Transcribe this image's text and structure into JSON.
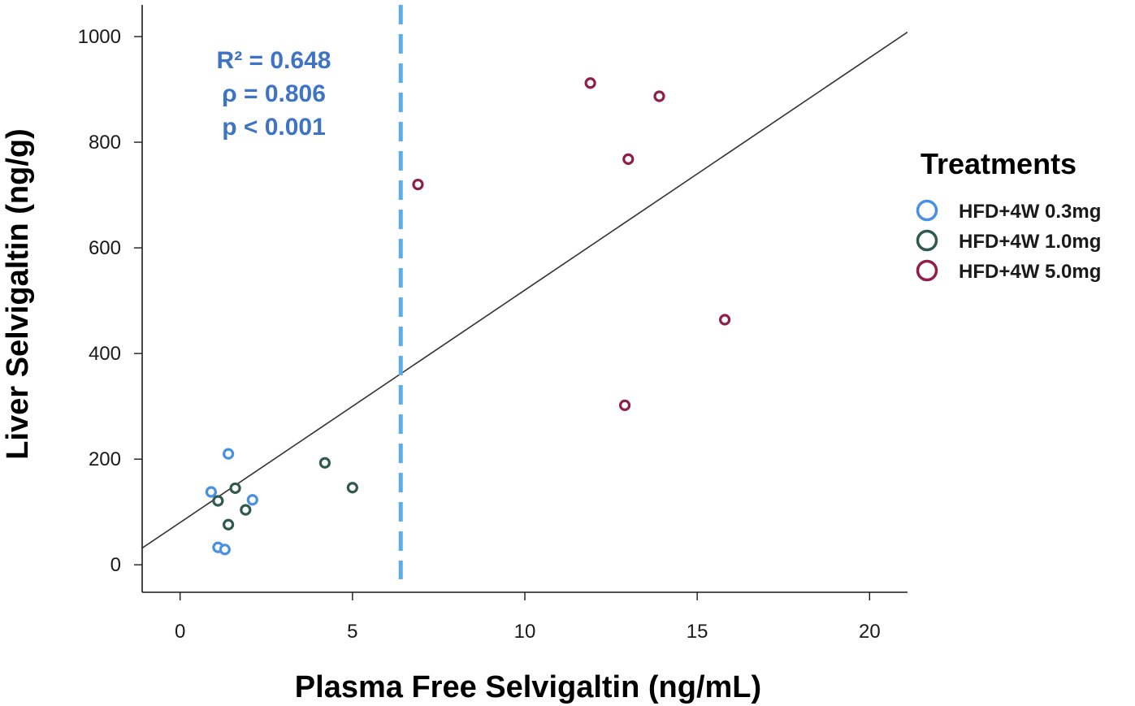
{
  "chart_data": {
    "type": "scatter",
    "title": "",
    "xlabel": "Plasma Free Selvigaltin (ng/mL)",
    "ylabel": "Liver Selvigaltin (ng/g)",
    "xlim": [
      -1.1,
      21.1
    ],
    "ylim": [
      -52,
      1060
    ],
    "x_ticks": [
      0,
      5,
      10,
      15,
      20
    ],
    "y_ticks": [
      0,
      200,
      400,
      600,
      800,
      1000
    ],
    "grid": false,
    "legend": {
      "title": "Treatments",
      "placement": "right"
    },
    "series": [
      {
        "name": "HFD+4W 0.3mg",
        "color": "#4a90e2",
        "points": [
          {
            "x": 0.9,
            "y": 138
          },
          {
            "x": 1.4,
            "y": 210
          },
          {
            "x": 2.1,
            "y": 123
          },
          {
            "x": 1.1,
            "y": 33
          },
          {
            "x": 1.3,
            "y": 29
          }
        ]
      },
      {
        "name": "HFD+4W 1.0mg",
        "color": "#2e5a50",
        "points": [
          {
            "x": 1.1,
            "y": 121
          },
          {
            "x": 1.6,
            "y": 145
          },
          {
            "x": 1.9,
            "y": 104
          },
          {
            "x": 1.4,
            "y": 76
          },
          {
            "x": 4.2,
            "y": 193
          },
          {
            "x": 5.0,
            "y": 146
          }
        ]
      },
      {
        "name": "HFD+4W 5.0mg",
        "color": "#8e1f4b",
        "points": [
          {
            "x": 6.9,
            "y": 720
          },
          {
            "x": 11.9,
            "y": 912
          },
          {
            "x": 13.0,
            "y": 768
          },
          {
            "x": 13.9,
            "y": 887
          },
          {
            "x": 15.8,
            "y": 464
          },
          {
            "x": 12.9,
            "y": 302
          }
        ]
      }
    ],
    "fit_line": {
      "type": "linear",
      "color": "#333333",
      "intercept": 80,
      "slope": 44
    },
    "reference_line": {
      "x": 6.4,
      "style": "dashed",
      "color": "#5aaee8"
    },
    "annotations": {
      "color": "#3f74c4",
      "lines": [
        "R² = 0.648",
        "ρ = 0.806",
        "p < 0.001"
      ]
    }
  }
}
